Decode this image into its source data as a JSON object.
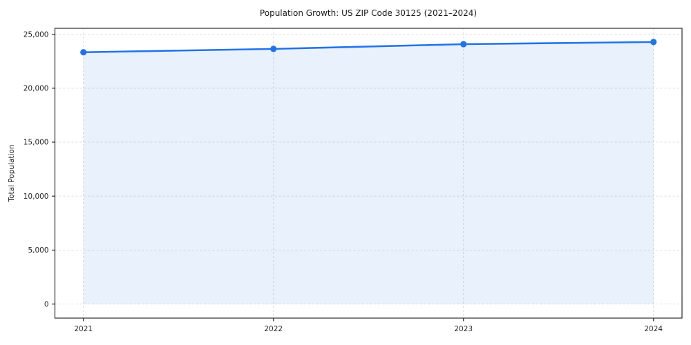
{
  "chart_data": {
    "type": "area",
    "title": "Population Growth: US ZIP Code 30125 (2021–2024)",
    "xlabel": "",
    "ylabel": "Total Population",
    "x": [
      2021,
      2022,
      2023,
      2024
    ],
    "series": [
      {
        "name": "Total Population",
        "values": [
          23330,
          23640,
          24080,
          24280
        ]
      }
    ],
    "xticks": [
      2021,
      2022,
      2023,
      2024
    ],
    "xtick_labels": [
      "2021",
      "2022",
      "2023",
      "2024"
    ],
    "yticks": [
      0,
      5000,
      10000,
      15000,
      20000,
      25000
    ],
    "ytick_labels": [
      "0",
      "5,000",
      "10,000",
      "15,000",
      "20,000",
      "25,000"
    ],
    "xlim": [
      2020.85,
      2024.15
    ],
    "ylim": [
      -1300,
      25550
    ],
    "fill_baseline": 0,
    "grid": true,
    "grid_dashed": true,
    "legend": "none",
    "colors": {
      "line": "#2273e6",
      "marker": "#2273e6",
      "fill": "#2273e6",
      "fill_opacity": 0.1,
      "grid": "#dcdcdc",
      "spine": "#2b2b2b",
      "tick_text": "#262626",
      "background": "#ffffff"
    }
  }
}
